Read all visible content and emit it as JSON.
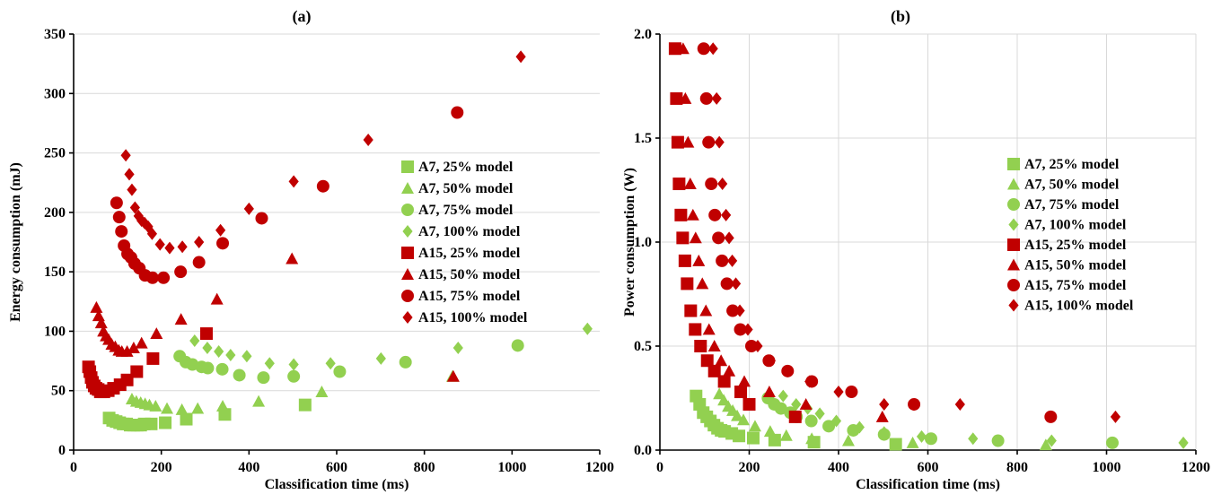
{
  "colors": {
    "a7": "#92d050",
    "a15": "#c00000"
  },
  "chart_data": [
    {
      "type": "scatter",
      "title": "(a)",
      "xlabel": "Classification time (ms)",
      "ylabel": "Energy consumption (mJ)",
      "xlim": [
        0,
        1200
      ],
      "ylim": [
        0,
        350
      ],
      "xticks": [
        0,
        200,
        400,
        600,
        800,
        1000,
        1200
      ],
      "yticks": [
        0,
        50,
        100,
        150,
        200,
        250,
        300,
        350
      ],
      "grid": "horizontal",
      "legend": "right",
      "series": [
        {
          "name": "A7, 25% model",
          "marker": "square",
          "color": "a7",
          "points": [
            [
              81,
              27
            ],
            [
              89,
              25
            ],
            [
              97,
              24
            ],
            [
              105,
              23
            ],
            [
              113,
              22
            ],
            [
              121,
              22
            ],
            [
              129,
              21
            ],
            [
              137,
              21
            ],
            [
              145,
              21
            ],
            [
              153,
              21
            ],
            [
              161,
              22
            ],
            [
              177,
              22
            ],
            [
              209,
              23
            ],
            [
              257,
              26
            ],
            [
              345,
              30
            ],
            [
              528,
              38
            ]
          ]
        },
        {
          "name": "A7, 50% model",
          "marker": "triangle",
          "color": "a7",
          "points": [
            [
              133,
              43
            ],
            [
              143,
              41
            ],
            [
              153,
              40
            ],
            [
              163,
              39
            ],
            [
              173,
              38
            ],
            [
              187,
              37
            ],
            [
              213,
              35
            ],
            [
              247,
              34
            ],
            [
              283,
              35
            ],
            [
              340,
              37
            ],
            [
              422,
              41
            ],
            [
              566,
              49
            ],
            [
              864,
              62
            ]
          ]
        },
        {
          "name": "A7, 75% model",
          "marker": "circle",
          "color": "a7",
          "points": [
            [
              242,
              79
            ],
            [
              256,
              74
            ],
            [
              271,
              72
            ],
            [
              292,
              70
            ],
            [
              306,
              69
            ],
            [
              339,
              68
            ],
            [
              378,
              63
            ],
            [
              433,
              61
            ],
            [
              502,
              62
            ],
            [
              607,
              66
            ],
            [
              757,
              74
            ],
            [
              1013,
              88
            ]
          ]
        },
        {
          "name": "A7, 100% model",
          "marker": "diamond",
          "color": "a7",
          "points": [
            [
              276,
              92
            ],
            [
              305,
              86
            ],
            [
              331,
              83
            ],
            [
              358,
              80
            ],
            [
              395,
              79
            ],
            [
              447,
              73
            ],
            [
              502,
              72
            ],
            [
              586,
              73
            ],
            [
              701,
              77
            ],
            [
              877,
              86
            ],
            [
              1172,
              102
            ]
          ]
        },
        {
          "name": "A15, 25% model",
          "marker": "square",
          "color": "a15",
          "points": [
            [
              34,
              70
            ],
            [
              37,
              66
            ],
            [
              40,
              61
            ],
            [
              43,
              57
            ],
            [
              47,
              54
            ],
            [
              51,
              52
            ],
            [
              56,
              51
            ],
            [
              61,
              49
            ],
            [
              69,
              49
            ],
            [
              79,
              50
            ],
            [
              91,
              52
            ],
            [
              106,
              55
            ],
            [
              122,
              59
            ],
            [
              144,
              66
            ],
            [
              181,
              77
            ],
            [
              303,
              98
            ]
          ]
        },
        {
          "name": "A15, 50% model",
          "marker": "triangle",
          "color": "a15",
          "points": [
            [
              52,
              120
            ],
            [
              57,
              113
            ],
            [
              63,
              107
            ],
            [
              68,
              100
            ],
            [
              74,
              96
            ],
            [
              80,
              93
            ],
            [
              87,
              89
            ],
            [
              95,
              87
            ],
            [
              103,
              84
            ],
            [
              110,
              83
            ],
            [
              122,
              83
            ],
            [
              137,
              86
            ],
            [
              155,
              90
            ],
            [
              189,
              98
            ],
            [
              245,
              110
            ],
            [
              327,
              127
            ],
            [
              498,
              161
            ],
            [
              866,
              62
            ]
          ]
        },
        {
          "name": "A15, 75% model",
          "marker": "circle",
          "color": "a15",
          "points": [
            [
              98,
              208
            ],
            [
              104,
              196
            ],
            [
              109,
              184
            ],
            [
              115,
              172
            ],
            [
              123,
              165
            ],
            [
              131,
              162
            ],
            [
              139,
              157
            ],
            [
              150,
              153
            ],
            [
              163,
              147
            ],
            [
              180,
              145
            ],
            [
              205,
              145
            ],
            [
              244,
              150
            ],
            [
              286,
              158
            ],
            [
              340,
              174
            ],
            [
              429,
              195
            ],
            [
              569,
              222
            ],
            [
              875,
              284
            ]
          ]
        },
        {
          "name": "A15, 100% model",
          "marker": "diamond",
          "color": "a15",
          "points": [
            [
              119,
              248
            ],
            [
              127,
              232
            ],
            [
              133,
              219
            ],
            [
              140,
              204
            ],
            [
              148,
              197
            ],
            [
              155,
              193
            ],
            [
              162,
              191
            ],
            [
              170,
              188
            ],
            [
              179,
              182
            ],
            [
              197,
              173
            ],
            [
              219,
              170
            ],
            [
              248,
              171
            ],
            [
              286,
              175
            ],
            [
              335,
              185
            ],
            [
              400,
              203
            ],
            [
              502,
              226
            ],
            [
              672,
              261
            ],
            [
              1020,
              331
            ]
          ]
        }
      ]
    },
    {
      "type": "scatter",
      "title": "(b)",
      "xlabel": "Classification time (ms)",
      "ylabel": "Power consumption (W)",
      "xlim": [
        0,
        1200
      ],
      "ylim": [
        0,
        2.0
      ],
      "xticks": [
        0,
        200,
        400,
        600,
        800,
        1000,
        1200
      ],
      "yticks": [
        0.0,
        0.5,
        1.0,
        1.5,
        2.0
      ],
      "yticks_decimals": 1,
      "grid": "both",
      "legend": "right",
      "series": [
        {
          "name": "A7, 25% model",
          "marker": "square",
          "color": "a7",
          "points": [
            [
              81,
              0.26
            ],
            [
              89,
              0.22
            ],
            [
              97,
              0.18
            ],
            [
              105,
              0.16
            ],
            [
              113,
              0.14
            ],
            [
              121,
              0.12
            ],
            [
              129,
              0.105
            ],
            [
              137,
              0.095
            ],
            [
              145,
              0.09
            ],
            [
              161,
              0.08
            ],
            [
              177,
              0.068
            ],
            [
              209,
              0.058
            ],
            [
              257,
              0.048
            ],
            [
              345,
              0.038
            ],
            [
              528,
              0.028
            ]
          ]
        },
        {
          "name": "A7, 50% model",
          "marker": "triangle",
          "color": "a7",
          "points": [
            [
              133,
              0.27
            ],
            [
              143,
              0.24
            ],
            [
              153,
              0.21
            ],
            [
              163,
              0.19
            ],
            [
              173,
              0.165
            ],
            [
              187,
              0.145
            ],
            [
              213,
              0.115
            ],
            [
              247,
              0.09
            ],
            [
              283,
              0.07
            ],
            [
              340,
              0.055
            ],
            [
              422,
              0.045
            ],
            [
              566,
              0.035
            ],
            [
              864,
              0.025
            ]
          ]
        },
        {
          "name": "A7, 75% model",
          "marker": "circle",
          "color": "a7",
          "points": [
            [
              242,
              0.25
            ],
            [
              256,
              0.22
            ],
            [
              271,
              0.2
            ],
            [
              292,
              0.18
            ],
            [
              306,
              0.16
            ],
            [
              339,
              0.14
            ],
            [
              378,
              0.115
            ],
            [
              433,
              0.095
            ],
            [
              502,
              0.075
            ],
            [
              607,
              0.055
            ],
            [
              757,
              0.045
            ],
            [
              1013,
              0.035
            ]
          ]
        },
        {
          "name": "A7, 100% model",
          "marker": "diamond",
          "color": "a7",
          "points": [
            [
              276,
              0.26
            ],
            [
              305,
              0.22
            ],
            [
              331,
              0.2
            ],
            [
              358,
              0.175
            ],
            [
              395,
              0.14
            ],
            [
              447,
              0.11
            ],
            [
              502,
              0.085
            ],
            [
              586,
              0.065
            ],
            [
              701,
              0.055
            ],
            [
              877,
              0.045
            ],
            [
              1172,
              0.035
            ]
          ]
        },
        {
          "name": "A15, 25% model",
          "marker": "square",
          "color": "a15",
          "points": [
            [
              34,
              1.93
            ],
            [
              37,
              1.69
            ],
            [
              40,
              1.48
            ],
            [
              43,
              1.28
            ],
            [
              47,
              1.13
            ],
            [
              51,
              1.02
            ],
            [
              56,
              0.91
            ],
            [
              61,
              0.8
            ],
            [
              69,
              0.67
            ],
            [
              79,
              0.58
            ],
            [
              91,
              0.5
            ],
            [
              106,
              0.43
            ],
            [
              122,
              0.38
            ],
            [
              144,
              0.33
            ],
            [
              181,
              0.28
            ],
            [
              303,
              0.16
            ],
            [
              200,
              0.22
            ]
          ]
        },
        {
          "name": "A15, 50% model",
          "marker": "triangle",
          "color": "a15",
          "points": [
            [
              52,
              1.93
            ],
            [
              57,
              1.69
            ],
            [
              63,
              1.48
            ],
            [
              68,
              1.28
            ],
            [
              74,
              1.13
            ],
            [
              80,
              1.02
            ],
            [
              87,
              0.91
            ],
            [
              95,
              0.8
            ],
            [
              103,
              0.67
            ],
            [
              110,
              0.58
            ],
            [
              122,
              0.5
            ],
            [
              137,
              0.43
            ],
            [
              155,
              0.38
            ],
            [
              189,
              0.33
            ],
            [
              245,
              0.28
            ],
            [
              327,
              0.22
            ],
            [
              498,
              0.16
            ]
          ]
        },
        {
          "name": "A15, 75% model",
          "marker": "circle",
          "color": "a15",
          "points": [
            [
              98,
              1.93
            ],
            [
              104,
              1.69
            ],
            [
              109,
              1.48
            ],
            [
              115,
              1.28
            ],
            [
              123,
              1.13
            ],
            [
              131,
              1.02
            ],
            [
              139,
              0.91
            ],
            [
              150,
              0.8
            ],
            [
              163,
              0.67
            ],
            [
              180,
              0.58
            ],
            [
              205,
              0.5
            ],
            [
              244,
              0.43
            ],
            [
              286,
              0.38
            ],
            [
              340,
              0.33
            ],
            [
              429,
              0.28
            ],
            [
              569,
              0.22
            ],
            [
              875,
              0.16
            ]
          ]
        },
        {
          "name": "A15, 100% model",
          "marker": "diamond",
          "color": "a15",
          "points": [
            [
              119,
              1.93
            ],
            [
              127,
              1.69
            ],
            [
              133,
              1.48
            ],
            [
              140,
              1.28
            ],
            [
              148,
              1.13
            ],
            [
              155,
              1.02
            ],
            [
              162,
              0.91
            ],
            [
              170,
              0.8
            ],
            [
              179,
              0.67
            ],
            [
              197,
              0.58
            ],
            [
              219,
              0.5
            ],
            [
              248,
              0.43
            ],
            [
              286,
              0.38
            ],
            [
              335,
              0.33
            ],
            [
              400,
              0.28
            ],
            [
              502,
              0.22
            ],
            [
              672,
              0.22
            ],
            [
              1020,
              0.16
            ]
          ]
        }
      ]
    }
  ]
}
